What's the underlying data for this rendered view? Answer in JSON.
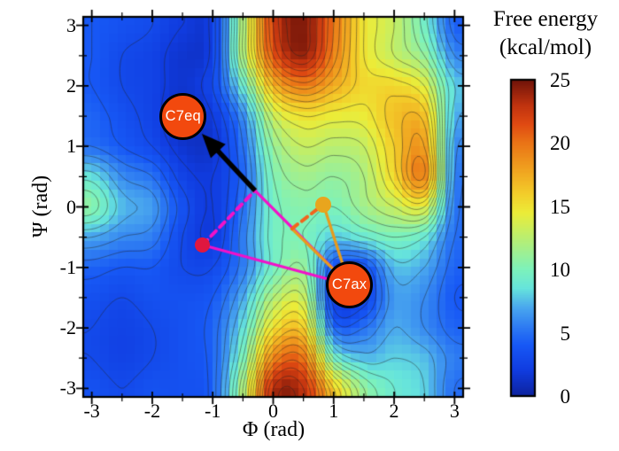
{
  "figure": {
    "xlabel": "Φ (rad)",
    "ylabel": "Ψ (rad)",
    "x_tick_labels": [
      "-3",
      "-2",
      "-1",
      "0",
      "1",
      "2",
      "3"
    ],
    "x_tick_values": [
      -3,
      -2,
      -1,
      0,
      1,
      2,
      3
    ],
    "y_tick_labels": [
      "3",
      "2",
      "1",
      "0",
      "-1",
      "-2",
      "-3"
    ],
    "y_tick_values": [
      3,
      2,
      1,
      0,
      -1,
      -2,
      -3
    ],
    "minor_tick_step": 0.5,
    "background": "#ffffff"
  },
  "colorbar": {
    "title_line1": "Free energy",
    "title_line2": "(kcal/mol)",
    "tick_labels": [
      "25",
      "20",
      "15",
      "10",
      "5",
      "0"
    ],
    "tick_values": [
      25,
      20,
      15,
      10,
      5,
      0
    ],
    "range": [
      0,
      25
    ]
  },
  "chart_data": {
    "type": "heatmap",
    "subtype": "filled-contour-free-energy-surface",
    "title": "Free energy (kcal/mol)",
    "xlabel": "Φ (rad)",
    "ylabel": "Ψ (rad)",
    "x_range": [
      -3.1416,
      3.1416
    ],
    "y_range": [
      -3.1416,
      3.1416
    ],
    "value_range": [
      0,
      25
    ],
    "contour_interval": 1,
    "grid_on": false,
    "phi": [
      -3,
      -2.5,
      -2,
      -1.5,
      -1,
      -0.5,
      0,
      0.5,
      1,
      1.5,
      2,
      2.5,
      3
    ],
    "psi_rows_top_to_bottom": [
      3,
      2.5,
      2,
      1.5,
      1,
      0.5,
      0,
      -0.5,
      -1,
      -1.5,
      -2,
      -2.5,
      -3
    ],
    "values_kcal_per_mol": [
      [
        4.0,
        3.5,
        3.0,
        2.0,
        2.5,
        12.0,
        22.0,
        24.5,
        20.0,
        15.0,
        13.0,
        9.5,
        4.5
      ],
      [
        4.0,
        3.0,
        2.5,
        1.5,
        2.5,
        12.0,
        21.0,
        24.0,
        19.5,
        15.0,
        13.0,
        11.0,
        6.0
      ],
      [
        4.0,
        3.0,
        2.5,
        1.5,
        3.0,
        9.0,
        17.0,
        19.5,
        17.5,
        15.5,
        15.5,
        14.0,
        8.0
      ],
      [
        4.5,
        3.5,
        2.5,
        1.0,
        2.0,
        6.0,
        13.0,
        15.0,
        14.5,
        14.5,
        16.5,
        16.5,
        7.5
      ],
      [
        5.0,
        4.0,
        3.0,
        1.5,
        1.5,
        5.0,
        11.0,
        13.0,
        12.5,
        13.0,
        16.0,
        18.0,
        6.5
      ],
      [
        8.5,
        6.0,
        5.0,
        2.5,
        2.0,
        4.5,
        10.0,
        11.5,
        11.0,
        12.0,
        15.5,
        19.0,
        6.0
      ],
      [
        10.5,
        7.5,
        6.5,
        3.5,
        2.0,
        5.0,
        9.5,
        10.5,
        10.0,
        11.5,
        13.0,
        14.0,
        5.5
      ],
      [
        7.0,
        6.0,
        5.5,
        3.0,
        2.0,
        5.5,
        9.5,
        10.0,
        8.0,
        9.0,
        10.0,
        9.0,
        5.0
      ],
      [
        4.5,
        4.0,
        4.0,
        3.0,
        3.0,
        5.5,
        9.5,
        11.0,
        4.0,
        3.5,
        7.5,
        7.0,
        4.5
      ],
      [
        3.5,
        3.0,
        3.5,
        3.5,
        4.0,
        7.0,
        12.0,
        13.0,
        2.5,
        2.5,
        6.5,
        6.0,
        4.0
      ],
      [
        3.0,
        2.5,
        3.0,
        3.5,
        4.5,
        8.5,
        15.0,
        16.0,
        5.0,
        5.0,
        7.0,
        6.0,
        4.5
      ],
      [
        3.0,
        2.5,
        3.0,
        3.5,
        4.5,
        10.0,
        19.0,
        20.0,
        10.0,
        7.5,
        8.0,
        7.5,
        5.5
      ],
      [
        3.5,
        3.0,
        3.5,
        3.5,
        4.5,
        12.0,
        23.0,
        23.0,
        16.0,
        11.0,
        9.0,
        8.0,
        5.0
      ]
    ],
    "colormap_stops": [
      [
        0,
        "#0d239f"
      ],
      [
        2,
        "#103ce0"
      ],
      [
        4,
        "#1758f5"
      ],
      [
        5.5,
        "#2f7df2"
      ],
      [
        7,
        "#4aa8ee"
      ],
      [
        8.5,
        "#66e4dc"
      ],
      [
        10,
        "#7df2bb"
      ],
      [
        11.5,
        "#a2ef8e"
      ],
      [
        13,
        "#c6ee62"
      ],
      [
        14.5,
        "#ecec38"
      ],
      [
        16,
        "#f3cd2a"
      ],
      [
        18,
        "#f0a01f"
      ],
      [
        20,
        "#ea7416"
      ],
      [
        21.5,
        "#e04a12"
      ],
      [
        23,
        "#c0330f"
      ],
      [
        25,
        "#701409"
      ]
    ],
    "contour_line_color": "rgba(35,35,35,0.55)",
    "annotations": {
      "state_fill": "#f2490e",
      "states": [
        {
          "label": "C7eq",
          "phi": -1.49,
          "psi": 1.5
        },
        {
          "label": "C7ax",
          "phi": 1.26,
          "psi": -1.29
        }
      ],
      "points": [
        {
          "name": "red-point",
          "phi": -1.17,
          "psi": -0.63,
          "color": "#e0173f",
          "diameter": 17
        },
        {
          "name": "orange-point",
          "phi": 0.83,
          "psi": 0.04,
          "color": "#e8a51e",
          "diameter": 18
        }
      ],
      "paths": [
        {
          "name": "magenta-solid-1",
          "style": "solid",
          "color": "#f211c9",
          "width": 3.2,
          "points": [
            [
              -1.17,
              -0.63
            ],
            [
              1.26,
              -1.29
            ]
          ]
        },
        {
          "name": "magenta-solid-2",
          "style": "solid",
          "color": "#f211c9",
          "width": 3.2,
          "points": [
            [
              -0.3,
              0.27
            ],
            [
              1.26,
              -1.29
            ]
          ]
        },
        {
          "name": "magenta-dashed",
          "style": "dashed",
          "color": "#f211c9",
          "width": 4,
          "points": [
            [
              -1.17,
              -0.63
            ],
            [
              -0.3,
              0.27
            ]
          ]
        },
        {
          "name": "orange-solid-1",
          "style": "solid",
          "color": "#e89b1c",
          "width": 3.2,
          "points": [
            [
              0.83,
              0.04
            ],
            [
              1.26,
              -1.29
            ]
          ]
        },
        {
          "name": "orange-solid-2",
          "style": "solid",
          "color": "#e89b1c",
          "width": 3.2,
          "points": [
            [
              0.31,
              -0.36
            ],
            [
              1.26,
              -1.29
            ]
          ]
        },
        {
          "name": "orange-dashed",
          "style": "dashed",
          "color": "#f2641d",
          "width": 4,
          "points": [
            [
              0.31,
              -0.36
            ],
            [
              0.83,
              0.04
            ]
          ]
        }
      ],
      "arrow": {
        "from": [
          -0.3,
          0.27
        ],
        "to": [
          -1.18,
          1.21
        ],
        "color": "#000000"
      }
    }
  }
}
